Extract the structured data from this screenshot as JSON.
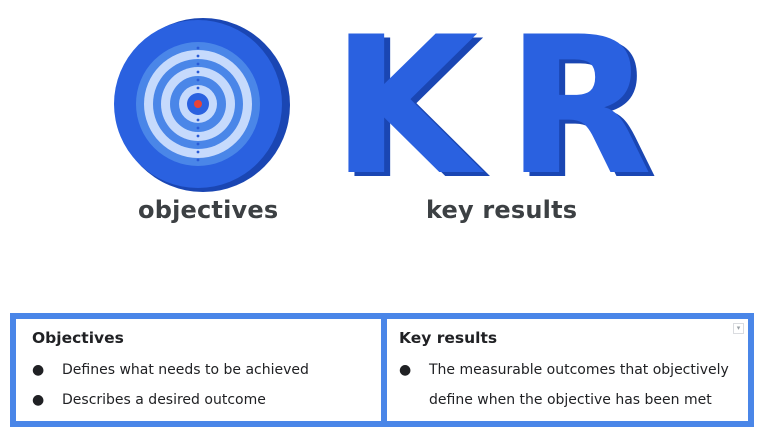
{
  "hero": {
    "letter_k": "K",
    "letter_r": "R",
    "caption_left": "objectives",
    "caption_right": "key results",
    "colors": {
      "primary_blue": "#3367d6",
      "letter_blue": "#2a61e0",
      "letter_shadow": "#1a46b3",
      "ring_light": "#c6dafc",
      "ring_mid": "#4a86e8",
      "ring_dark": "#2a5bd7",
      "center_dot": "#ea4335"
    },
    "icon": "target-icon"
  },
  "table": {
    "border_color": "#4a86e8",
    "left": {
      "title": "Objectives",
      "bullets": [
        "Defines what needs to be achieved",
        "Describes a desired outcome"
      ]
    },
    "right": {
      "title": "Key results",
      "bullets": [
        "The measurable outcomes that objectively",
        "define when the objective has been met"
      ],
      "dropdown_glyph": "▾"
    },
    "bullet_glyph": "●"
  }
}
